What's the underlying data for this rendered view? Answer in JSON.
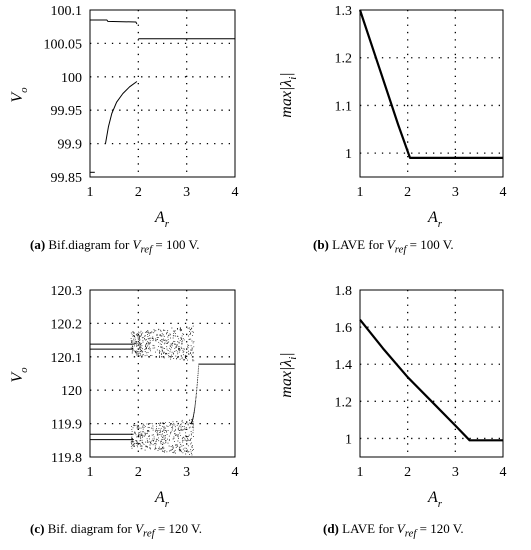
{
  "chart_data": [
    {
      "id": "a",
      "type": "scatter",
      "xlabel": "A_r",
      "ylabel": "V_o",
      "xlim": [
        1,
        4
      ],
      "ylim": [
        99.85,
        100.1
      ],
      "xticks": [
        "1",
        "2",
        "3",
        "4"
      ],
      "yticks": [
        "99.85",
        "99.9",
        "99.95",
        "100",
        "100.05",
        "100.1"
      ],
      "ytick_values": [
        99.85,
        99.9,
        99.95,
        100,
        100.05,
        100.1
      ],
      "grid": true,
      "series": [
        {
          "values": [
            [
              1.0,
              100.085
            ],
            [
              1.35,
              100.085
            ],
            [
              1.37,
              100.083
            ],
            [
              1.95,
              100.082
            ],
            [
              1.97,
              100.079
            ]
          ]
        },
        {
          "values": [
            [
              1.0,
              99.857
            ],
            [
              1.1,
              99.857
            ]
          ]
        },
        {
          "values": [
            [
              2.0,
              100.057
            ],
            [
              4.0,
              100.057
            ]
          ]
        },
        {
          "values": [
            [
              1.32,
              99.9
            ],
            [
              1.38,
              99.925
            ],
            [
              1.45,
              99.945
            ],
            [
              1.55,
              99.962
            ],
            [
              1.68,
              99.975
            ],
            [
              1.82,
              99.985
            ],
            [
              1.97,
              99.993
            ]
          ]
        }
      ],
      "caption": {
        "letter": "(a)",
        "text": "Bif.diagram for ",
        "math": "V",
        "sub": "ref",
        "tail": " = 100 V."
      }
    },
    {
      "id": "b",
      "type": "line",
      "xlabel": "A_r",
      "ylabel": "max|λ_i|",
      "xlim": [
        1,
        4
      ],
      "ylim": [
        0.95,
        1.3
      ],
      "xticks": [
        "1",
        "2",
        "3",
        "4"
      ],
      "yticks": [
        "1",
        "1.1",
        "1.2",
        "1.3"
      ],
      "ytick_values": [
        1,
        1.1,
        1.2,
        1.3
      ],
      "grid": true,
      "series": [
        {
          "values": [
            [
              1.0,
              1.3
            ],
            [
              1.4,
              1.18
            ],
            [
              1.8,
              1.06
            ],
            [
              2.05,
              0.99
            ],
            [
              4.0,
              0.99
            ]
          ]
        }
      ],
      "caption": {
        "letter": "(b)",
        "text": "LAVE for  ",
        "math": "V",
        "sub": "ref",
        "tail": " = 100 V."
      }
    },
    {
      "id": "c",
      "type": "scatter",
      "xlabel": "A_r",
      "ylabel": "V_o",
      "xlim": [
        1,
        4
      ],
      "ylim": [
        119.8,
        120.3
      ],
      "xticks": [
        "1",
        "2",
        "3",
        "4"
      ],
      "yticks": [
        "119.8",
        "119.9",
        "120",
        "120.1",
        "120.2",
        "120.3"
      ],
      "ytick_values": [
        119.8,
        119.9,
        120,
        120.1,
        120.2,
        120.3
      ],
      "grid": true,
      "series": [
        {
          "values": [
            [
              1.0,
              120.138
            ],
            [
              1.9,
              120.138
            ]
          ]
        },
        {
          "values": [
            [
              1.0,
              120.123
            ],
            [
              1.9,
              120.123
            ]
          ]
        },
        {
          "values": [
            [
              1.0,
              119.868
            ],
            [
              1.9,
              119.868
            ]
          ]
        },
        {
          "values": [
            [
              1.0,
              119.852
            ],
            [
              1.9,
              119.852
            ]
          ]
        },
        {
          "values": [
            [
              3.25,
              120.078
            ],
            [
              4.0,
              120.078
            ]
          ]
        }
      ],
      "caption": {
        "letter": "(c)",
        "text": "Bif. diagram for ",
        "math": "V",
        "sub": "ref",
        "tail": " = 120 V."
      }
    },
    {
      "id": "d",
      "type": "line",
      "xlabel": "A_r",
      "ylabel": "max|λ_i|",
      "xlim": [
        1,
        4
      ],
      "ylim": [
        0.9,
        1.8
      ],
      "xticks": [
        "1",
        "2",
        "3",
        "4"
      ],
      "yticks": [
        "1",
        "1.2",
        "1.4",
        "1.6",
        "1.8"
      ],
      "ytick_values": [
        1,
        1.2,
        1.4,
        1.6,
        1.8
      ],
      "grid": true,
      "series": [
        {
          "values": [
            [
              1.0,
              1.64
            ],
            [
              1.5,
              1.48
            ],
            [
              2.0,
              1.33
            ],
            [
              2.5,
              1.2
            ],
            [
              3.0,
              1.07
            ],
            [
              3.3,
              0.99
            ],
            [
              4.0,
              0.99
            ]
          ]
        }
      ],
      "caption": {
        "letter": "(d)",
        "text": "LAVE for ",
        "math": "V",
        "sub": "ref",
        "tail": " = 120 V."
      }
    }
  ]
}
